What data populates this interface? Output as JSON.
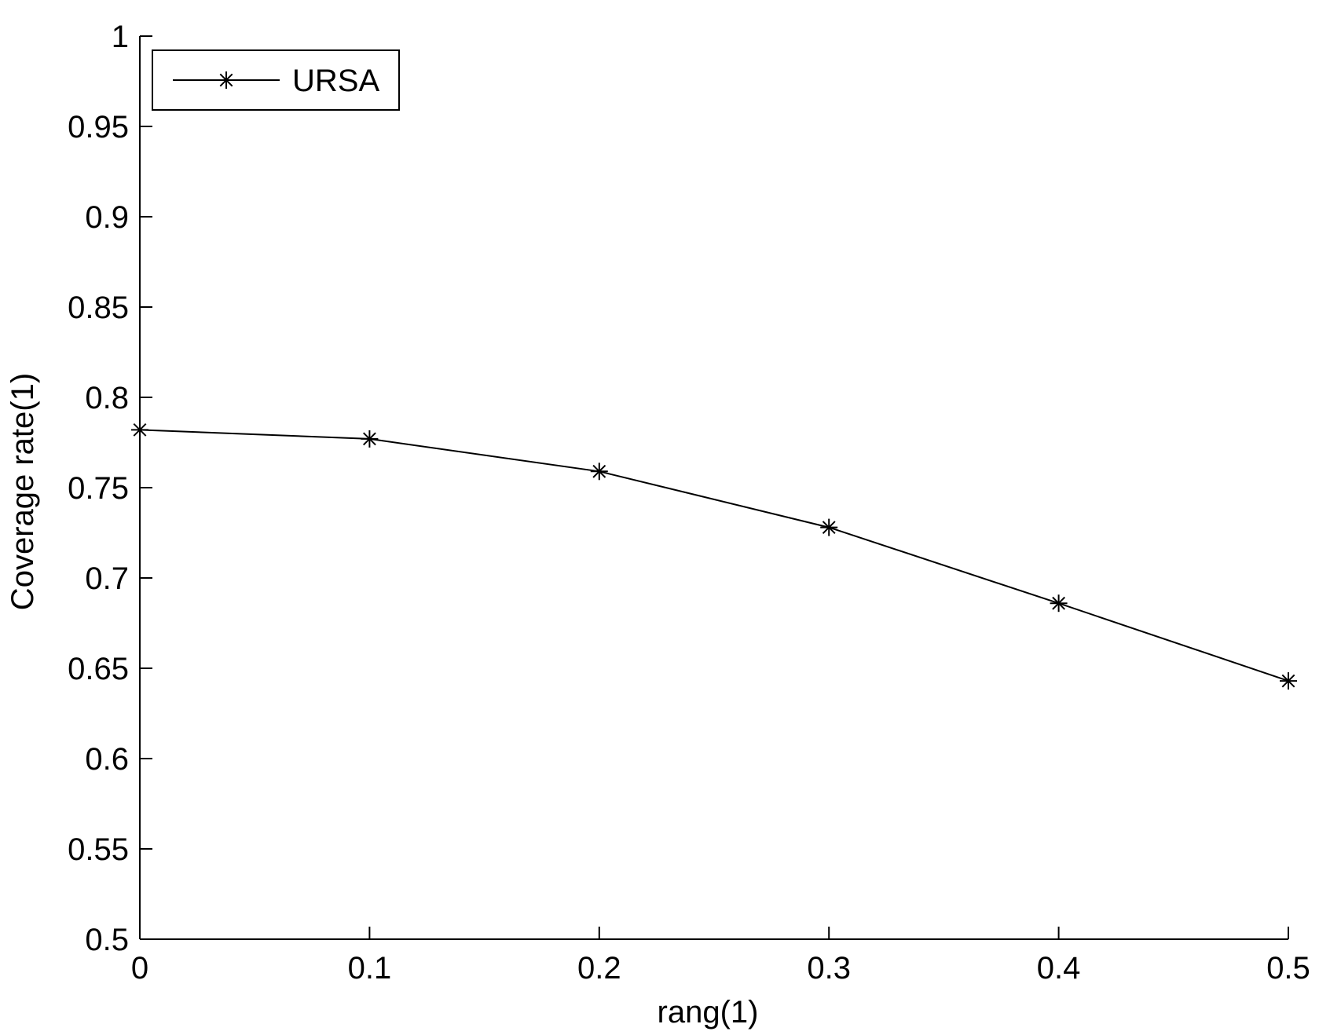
{
  "chart_data": {
    "type": "line",
    "x": [
      0,
      0.1,
      0.2,
      0.3,
      0.4,
      0.5
    ],
    "series": [
      {
        "name": "URSA",
        "values": [
          0.782,
          0.777,
          0.759,
          0.728,
          0.686,
          0.643
        ],
        "marker": "asterisk",
        "color": "#000000"
      }
    ],
    "xlabel": "rang(1)",
    "ylabel": "Coverage rate(1)",
    "xlim": [
      0,
      0.5
    ],
    "ylim": [
      0.5,
      1
    ],
    "xticks": [
      "0",
      "0.1",
      "0.2",
      "0.3",
      "0.4",
      "0.5"
    ],
    "yticks": [
      "0.5",
      "0.55",
      "0.6",
      "0.65",
      "0.7",
      "0.75",
      "0.8",
      "0.85",
      "0.9",
      "0.95",
      "1"
    ],
    "grid": false,
    "legend_position": "top-left"
  }
}
